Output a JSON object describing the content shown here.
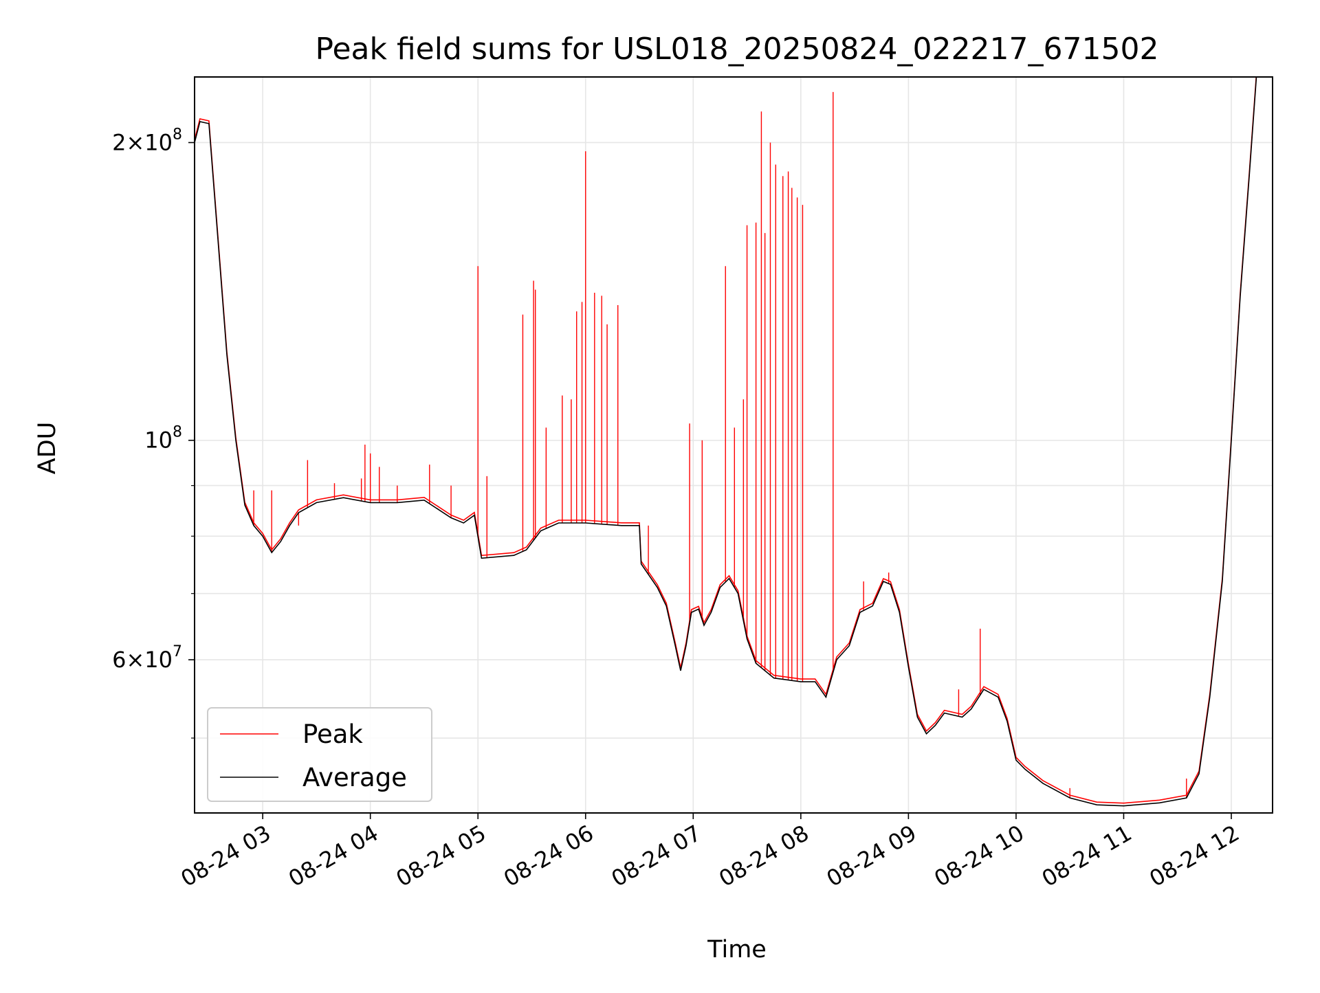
{
  "chart_data": {
    "type": "line",
    "title": "Peak field sums for USL018_20250824_022217_671502",
    "xlabel": "Time",
    "ylabel": "ADU",
    "yscale": "log",
    "xlim": [
      "2025-08-24 02:22",
      "2025-08-24 12:23"
    ],
    "ylim": [
      42000000,
      233000000
    ],
    "grid": true,
    "legend": "lower-left",
    "x_ticks": [
      {
        "value": "2025-08-24 03:00",
        "label": "08-24 03"
      },
      {
        "value": "2025-08-24 04:00",
        "label": "08-24 04"
      },
      {
        "value": "2025-08-24 05:00",
        "label": "08-24 05"
      },
      {
        "value": "2025-08-24 06:00",
        "label": "08-24 06"
      },
      {
        "value": "2025-08-24 07:00",
        "label": "08-24 07"
      },
      {
        "value": "2025-08-24 08:00",
        "label": "08-24 08"
      },
      {
        "value": "2025-08-24 09:00",
        "label": "08-24 09"
      },
      {
        "value": "2025-08-24 10:00",
        "label": "08-24 10"
      },
      {
        "value": "2025-08-24 11:00",
        "label": "08-24 11"
      },
      {
        "value": "2025-08-24 12:00",
        "label": "08-24 12"
      }
    ],
    "y_ticks_major": [
      {
        "value": 60000000,
        "mantissa": "6",
        "exp": "7"
      },
      {
        "value": 100000000,
        "mantissa": "",
        "exp": "8"
      },
      {
        "value": 200000000,
        "mantissa": "2",
        "exp": "8"
      }
    ],
    "y_ticks_minor": [
      50000000,
      70000000,
      80000000,
      90000000
    ],
    "series": [
      {
        "name": "Average",
        "color": "#000000",
        "points": [
          [
            "2025-08-24 02:22",
            200000000
          ],
          [
            "2025-08-24 02:25",
            210000000
          ],
          [
            "2025-08-24 02:30",
            209000000
          ],
          [
            "2025-08-24 02:35",
            160000000
          ],
          [
            "2025-08-24 02:40",
            122000000
          ],
          [
            "2025-08-24 02:45",
            100000000
          ],
          [
            "2025-08-24 02:50",
            86000000
          ],
          [
            "2025-08-24 02:55",
            82000000
          ],
          [
            "2025-08-24 03:00",
            80000000
          ],
          [
            "2025-08-24 03:05",
            77000000
          ],
          [
            "2025-08-24 03:10",
            79000000
          ],
          [
            "2025-08-24 03:15",
            82000000
          ],
          [
            "2025-08-24 03:20",
            84500000
          ],
          [
            "2025-08-24 03:30",
            86500000
          ],
          [
            "2025-08-24 03:45",
            87500000
          ],
          [
            "2025-08-24 04:00",
            86500000
          ],
          [
            "2025-08-24 04:15",
            86500000
          ],
          [
            "2025-08-24 04:30",
            87000000
          ],
          [
            "2025-08-24 04:45",
            83500000
          ],
          [
            "2025-08-24 04:52",
            82500000
          ],
          [
            "2025-08-24 04:58",
            84000000
          ],
          [
            "2025-08-24 05:02",
            76000000
          ],
          [
            "2025-08-24 05:20",
            76500000
          ],
          [
            "2025-08-24 05:27",
            77500000
          ],
          [
            "2025-08-24 05:35",
            81000000
          ],
          [
            "2025-08-24 05:45",
            82500000
          ],
          [
            "2025-08-24 06:00",
            82500000
          ],
          [
            "2025-08-24 06:20",
            82000000
          ],
          [
            "2025-08-24 06:30",
            82000000
          ],
          [
            "2025-08-24 06:31",
            75000000
          ],
          [
            "2025-08-24 06:40",
            71000000
          ],
          [
            "2025-08-24 06:45",
            68000000
          ],
          [
            "2025-08-24 06:50",
            62000000
          ],
          [
            "2025-08-24 06:53",
            58500000
          ],
          [
            "2025-08-24 06:56",
            62000000
          ],
          [
            "2025-08-24 06:59",
            67000000
          ],
          [
            "2025-08-24 07:03",
            67500000
          ],
          [
            "2025-08-24 07:06",
            65000000
          ],
          [
            "2025-08-24 07:10",
            67000000
          ],
          [
            "2025-08-24 07:15",
            71000000
          ],
          [
            "2025-08-24 07:20",
            72500000
          ],
          [
            "2025-08-24 07:25",
            70000000
          ],
          [
            "2025-08-24 07:30",
            63000000
          ],
          [
            "2025-08-24 07:35",
            59500000
          ],
          [
            "2025-08-24 07:45",
            57500000
          ],
          [
            "2025-08-24 08:00",
            57000000
          ],
          [
            "2025-08-24 08:08",
            57000000
          ],
          [
            "2025-08-24 08:14",
            55000000
          ],
          [
            "2025-08-24 08:20",
            60000000
          ],
          [
            "2025-08-24 08:27",
            62000000
          ],
          [
            "2025-08-24 08:33",
            67000000
          ],
          [
            "2025-08-24 08:40",
            68000000
          ],
          [
            "2025-08-24 08:46",
            72000000
          ],
          [
            "2025-08-24 08:50",
            71500000
          ],
          [
            "2025-08-24 08:55",
            67000000
          ],
          [
            "2025-08-24 09:00",
            59000000
          ],
          [
            "2025-08-24 09:05",
            52500000
          ],
          [
            "2025-08-24 09:10",
            50500000
          ],
          [
            "2025-08-24 09:15",
            51500000
          ],
          [
            "2025-08-24 09:20",
            53000000
          ],
          [
            "2025-08-24 09:30",
            52500000
          ],
          [
            "2025-08-24 09:35",
            53500000
          ],
          [
            "2025-08-24 09:42",
            56000000
          ],
          [
            "2025-08-24 09:50",
            55000000
          ],
          [
            "2025-08-24 09:55",
            52000000
          ],
          [
            "2025-08-24 10:00",
            47500000
          ],
          [
            "2025-08-24 10:05",
            46500000
          ],
          [
            "2025-08-24 10:15",
            45000000
          ],
          [
            "2025-08-24 10:30",
            43500000
          ],
          [
            "2025-08-24 10:45",
            42800000
          ],
          [
            "2025-08-24 11:00",
            42700000
          ],
          [
            "2025-08-24 11:20",
            43000000
          ],
          [
            "2025-08-24 11:35",
            43500000
          ],
          [
            "2025-08-24 11:42",
            46000000
          ],
          [
            "2025-08-24 11:48",
            55000000
          ],
          [
            "2025-08-24 11:55",
            72000000
          ],
          [
            "2025-08-24 12:00",
            100000000
          ],
          [
            "2025-08-24 12:05",
            140000000
          ],
          [
            "2025-08-24 12:10",
            185000000
          ],
          [
            "2025-08-24 12:14",
            233000000
          ]
        ]
      },
      {
        "name": "Peak",
        "color": "#ff0000",
        "note_spikes": "spikes are peak values above the average",
        "spikes": [
          [
            "2025-08-24 02:55",
            89000000
          ],
          [
            "2025-08-24 03:05",
            89000000
          ],
          [
            "2025-08-24 03:20",
            82000000
          ],
          [
            "2025-08-24 03:25",
            95500000
          ],
          [
            "2025-08-24 03:40",
            90500000
          ],
          [
            "2025-08-24 03:55",
            91500000
          ],
          [
            "2025-08-24 03:57",
            99000000
          ],
          [
            "2025-08-24 04:00",
            97000000
          ],
          [
            "2025-08-24 04:05",
            94000000
          ],
          [
            "2025-08-24 04:15",
            90000000
          ],
          [
            "2025-08-24 04:33",
            94500000
          ],
          [
            "2025-08-24 04:45",
            90000000
          ],
          [
            "2025-08-24 05:00",
            150000000
          ],
          [
            "2025-08-24 05:05",
            92000000
          ],
          [
            "2025-08-24 05:25",
            134000000
          ],
          [
            "2025-08-24 05:31",
            145000000
          ],
          [
            "2025-08-24 05:32",
            142000000
          ],
          [
            "2025-08-24 05:38",
            103000000
          ],
          [
            "2025-08-24 05:47",
            111000000
          ],
          [
            "2025-08-24 05:52",
            110000000
          ],
          [
            "2025-08-24 05:55",
            135000000
          ],
          [
            "2025-08-24 05:58",
            138000000
          ],
          [
            "2025-08-24 06:00",
            196000000
          ],
          [
            "2025-08-24 06:05",
            141000000
          ],
          [
            "2025-08-24 06:09",
            140000000
          ],
          [
            "2025-08-24 06:12",
            131000000
          ],
          [
            "2025-08-24 06:18",
            137000000
          ],
          [
            "2025-08-24 06:35",
            82000000
          ],
          [
            "2025-08-24 06:58",
            104000000
          ],
          [
            "2025-08-24 07:05",
            100000000
          ],
          [
            "2025-08-24 07:18",
            150000000
          ],
          [
            "2025-08-24 07:23",
            103000000
          ],
          [
            "2025-08-24 07:28",
            110000000
          ],
          [
            "2025-08-24 07:30",
            165000000
          ],
          [
            "2025-08-24 07:35",
            166000000
          ],
          [
            "2025-08-24 07:38",
            215000000
          ],
          [
            "2025-08-24 07:40",
            162000000
          ],
          [
            "2025-08-24 07:43",
            200000000
          ],
          [
            "2025-08-24 07:46",
            190000000
          ],
          [
            "2025-08-24 07:50",
            185000000
          ],
          [
            "2025-08-24 07:53",
            187000000
          ],
          [
            "2025-08-24 07:55",
            180000000
          ],
          [
            "2025-08-24 07:58",
            176000000
          ],
          [
            "2025-08-24 08:01",
            173000000
          ],
          [
            "2025-08-24 08:18",
            225000000
          ],
          [
            "2025-08-24 08:35",
            72000000
          ],
          [
            "2025-08-24 08:49",
            73500000
          ],
          [
            "2025-08-24 09:28",
            56000000
          ],
          [
            "2025-08-24 09:40",
            64500000
          ],
          [
            "2025-08-24 10:00",
            47500000
          ],
          [
            "2025-08-24 10:30",
            44500000
          ],
          [
            "2025-08-24 11:35",
            45500000
          ]
        ]
      }
    ]
  }
}
